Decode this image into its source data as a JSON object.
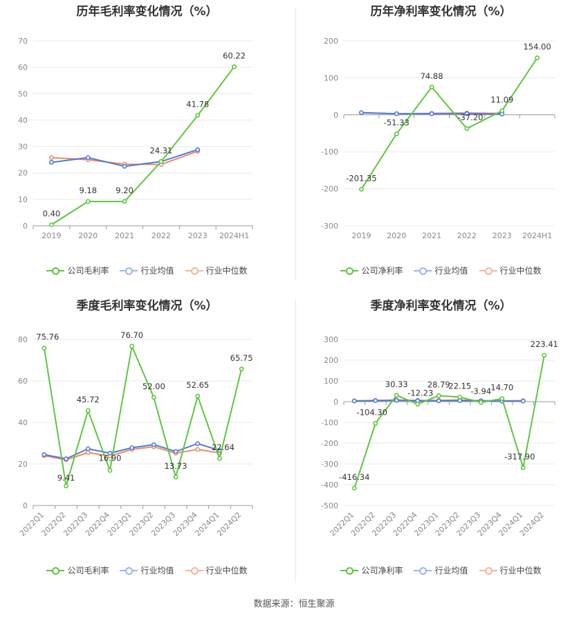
{
  "colors": {
    "company": "#5cc73e",
    "avg": "#4a7be0",
    "median": "#ef8a65",
    "grid": "#e8e8e8",
    "axis": "#999999"
  },
  "legend": {
    "company_gross": "公司毛利率",
    "company_net": "公司净利率",
    "avg": "行业均值",
    "median": "行业中位数"
  },
  "footer": "数据来源：恒生聚源",
  "chart_data": [
    {
      "type": "line",
      "title": "历年毛利率变化情况（%）",
      "categories": [
        "2019",
        "2020",
        "2021",
        "2022",
        "2023",
        "2024H1"
      ],
      "ylim": [
        0,
        70
      ],
      "yticks": [
        0,
        10,
        20,
        30,
        40,
        50,
        60,
        70
      ],
      "rotate_labels": false,
      "series": [
        {
          "name": "公司毛利率",
          "key": "company",
          "values": [
            0.4,
            9.18,
            9.2,
            24.31,
            41.78,
            60.22
          ],
          "labels": [
            "0.40",
            "9.18",
            "9.20",
            "24.31",
            "41.78",
            "60.22"
          ]
        },
        {
          "name": "行业均值",
          "key": "avg",
          "values": [
            24.0,
            25.8,
            22.5,
            24.3,
            28.8,
            null
          ]
        },
        {
          "name": "行业中位数",
          "key": "median",
          "values": [
            25.8,
            25.0,
            23.3,
            23.2,
            28.2,
            null
          ]
        }
      ]
    },
    {
      "type": "line",
      "title": "历年净利率变化情况（%）",
      "categories": [
        "2019",
        "2020",
        "2021",
        "2022",
        "2023",
        "2024H1"
      ],
      "ylim": [
        -300,
        200
      ],
      "yticks": [
        -300,
        -200,
        -100,
        0,
        100,
        200
      ],
      "rotate_labels": false,
      "series": [
        {
          "name": "公司净利率",
          "key": "company",
          "values": [
            -201.35,
            -51.33,
            74.88,
            -37.2,
            11.09,
            154.0
          ],
          "labels": [
            "-201.35",
            "-51.33",
            "74.88",
            "-37.20",
            "11.09",
            "154.00"
          ]
        },
        {
          "name": "行业均值",
          "key": "avg",
          "values": [
            6,
            3,
            3,
            3,
            2,
            null
          ]
        },
        {
          "name": "行业中位数",
          "key": "median",
          "values": [
            5,
            3,
            4,
            5,
            4,
            null
          ]
        }
      ]
    },
    {
      "type": "line",
      "title": "季度毛利率变化情况（%）",
      "categories": [
        "2022Q1",
        "2022Q2",
        "2022Q3",
        "2022Q4",
        "2023Q1",
        "2023Q2",
        "2023Q3",
        "2023Q4",
        "2024Q1",
        "2024Q2"
      ],
      "ylim": [
        0,
        80
      ],
      "yticks": [
        0,
        20,
        40,
        60,
        80
      ],
      "rotate_labels": true,
      "series": [
        {
          "name": "公司毛利率",
          "key": "company",
          "values": [
            75.76,
            9.41,
            45.72,
            16.9,
            76.7,
            52.0,
            13.73,
            52.65,
            22.64,
            65.75
          ],
          "labels": [
            "75.76",
            "9.41",
            "45.72",
            "16.90",
            "76.70",
            "52.00",
            "13.73",
            "52.65",
            "22.64",
            "65.75"
          ]
        },
        {
          "name": "行业均值",
          "key": "avg",
          "values": [
            24.5,
            22.5,
            27.3,
            25.2,
            27.8,
            29.3,
            26.0,
            29.8,
            26.5,
            null
          ]
        },
        {
          "name": "行业中位数",
          "key": "median",
          "values": [
            24.0,
            22.0,
            25.5,
            23.8,
            27.0,
            28.3,
            25.2,
            27.0,
            25.3,
            null
          ]
        }
      ]
    },
    {
      "type": "line",
      "title": "季度净利率变化情况（%）",
      "categories": [
        "2022Q1",
        "2022Q2",
        "2022Q3",
        "2022Q4",
        "2023Q1",
        "2023Q2",
        "2023Q3",
        "2023Q4",
        "2024Q1",
        "2024Q2"
      ],
      "ylim": [
        -500,
        300
      ],
      "yticks": [
        -500,
        -400,
        -300,
        -200,
        -100,
        0,
        100,
        200,
        300
      ],
      "rotate_labels": true,
      "series": [
        {
          "name": "公司净利率",
          "key": "company",
          "values": [
            -416.34,
            -104.3,
            30.33,
            -12.23,
            28.79,
            22.15,
            -3.94,
            14.7,
            -317.9,
            223.41
          ],
          "labels": [
            "-416.34",
            "-104.30",
            "30.33",
            "-12.23",
            "28.79",
            "22.15",
            "-3.94",
            "14.70",
            "-317.90",
            "223.41"
          ]
        },
        {
          "name": "行业均值",
          "key": "avg",
          "values": [
            3,
            5,
            6,
            4,
            4,
            5,
            3,
            2,
            3,
            null
          ]
        },
        {
          "name": "行业中位数",
          "key": "median",
          "values": [
            4,
            6,
            8,
            6,
            6,
            8,
            5,
            4,
            5,
            null
          ]
        }
      ]
    }
  ]
}
